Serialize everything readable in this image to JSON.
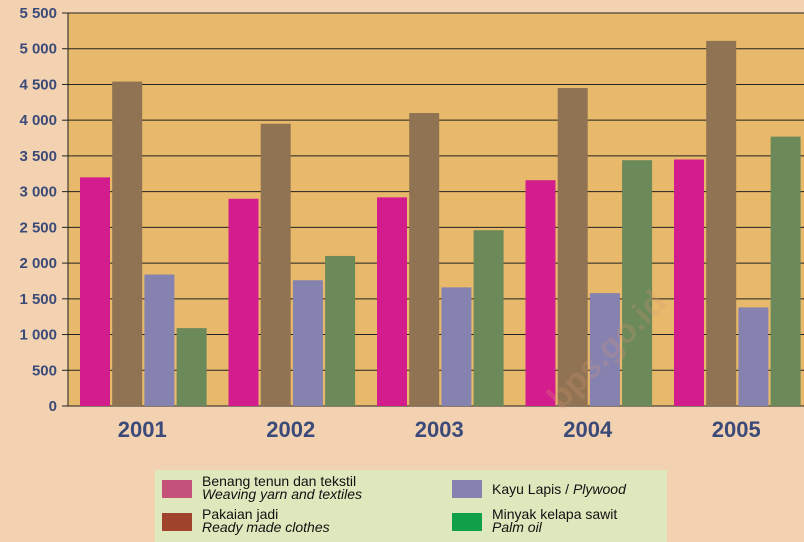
{
  "chart_data": {
    "type": "bar",
    "categories": [
      "2001",
      "2002",
      "2003",
      "2004",
      "2005"
    ],
    "series": [
      {
        "name": "Benang tenun dan tekstil / Weaving yarn and textiles",
        "color": "#d41d8c",
        "values": [
          3200,
          2900,
          2920,
          3160,
          3450
        ]
      },
      {
        "name": "Pakaian jadi / Ready made clothes",
        "color": "#8f7352",
        "values": [
          4540,
          3950,
          4100,
          4450,
          5110
        ]
      },
      {
        "name": "Kayu Lapis / Plywood",
        "color": "#8582b0",
        "values": [
          1840,
          1760,
          1660,
          1580,
          1380
        ]
      },
      {
        "name": "Minyak kelapa sawit / Palm oil",
        "color": "#6b8959",
        "values": [
          1090,
          2100,
          2460,
          3440,
          3770
        ]
      }
    ],
    "ylim": [
      0,
      5500
    ],
    "yticks": [
      "0",
      "500",
      "1 000",
      "1 500",
      "2 000",
      "2 500",
      "3 000",
      "3 500",
      "4 000",
      "4 500",
      "5 000",
      "5 500"
    ],
    "grid": true,
    "plot_background": "#e8b96a",
    "legend_position": "bottom"
  },
  "legend": {
    "items": [
      {
        "label": "Benang tenun dan tekstil",
        "label_en": "Weaving yarn and textiles",
        "color": "#c4517a",
        "icon": "square-swatch"
      },
      {
        "label": "Pakaian jadi",
        "label_en": "Ready made clothes",
        "color": "#a0432c",
        "icon": "square-swatch"
      },
      {
        "label": "Kayu Lapis / ",
        "label_en": "Plywood",
        "color": "#8582b0",
        "icon": "square-swatch"
      },
      {
        "label": "Minyak kelapa sawit",
        "label_en": "Palm oil",
        "color": "#0fa049",
        "icon": "square-swatch"
      }
    ]
  },
  "watermark": "bps.go.id"
}
